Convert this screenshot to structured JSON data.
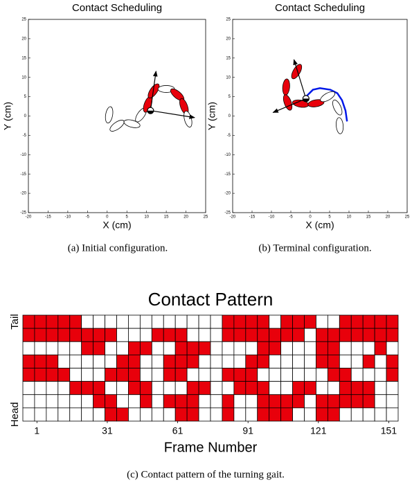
{
  "chart_data": [
    {
      "type": "snake",
      "title": "Contact Scheduling",
      "xlabel": "X (cm)",
      "ylabel": "Y (cm)",
      "caption": "(a) Initial configuration.",
      "xlim": [
        -20,
        25
      ],
      "ylim": [
        -25,
        25
      ],
      "xticks": [
        -20,
        -15,
        -10,
        -5,
        0,
        5,
        10,
        15,
        20,
        25
      ],
      "yticks": [
        -25,
        -20,
        -15,
        -10,
        -5,
        0,
        5,
        10,
        15,
        20,
        25
      ],
      "contact_color": "#e8000b",
      "links": {
        "x": [
          0.5,
          2.5,
          6.3,
          8.6,
          10.3,
          11.8,
          15,
          17.8,
          19.5,
          20.5
        ],
        "y": [
          0.3,
          -2.5,
          -2.0,
          0.3,
          3.0,
          6.5,
          7,
          5.5,
          2.5,
          -0.8
        ],
        "angle": [
          80,
          35,
          -15,
          55,
          70,
          55,
          0,
          -40,
          -70,
          -75
        ],
        "contact": [
          0,
          0,
          0,
          0,
          1,
          1,
          0,
          1,
          1,
          0
        ]
      },
      "center": [
        11,
        1.4
      ],
      "arrows": {
        "x0": [
          11,
          11
        ],
        "y0": [
          1.4,
          1.4
        ],
        "x1": [
          12.4,
          22.2
        ],
        "y1": [
          11.6,
          -0.4
        ]
      }
    },
    {
      "type": "snake",
      "title": "Contact Scheduling",
      "xlabel": "X (cm)",
      "ylabel": "Y (cm)",
      "caption": "(b) Terminal configuration.",
      "xlim": [
        -20,
        25
      ],
      "ylim": [
        -25,
        25
      ],
      "xticks": [
        -20,
        -15,
        -10,
        -5,
        0,
        5,
        10,
        15,
        20,
        25
      ],
      "yticks": [
        -25,
        -20,
        -15,
        -10,
        -5,
        0,
        5,
        10,
        15,
        20,
        25
      ],
      "contact_color": "#e8000b",
      "links": {
        "x": [
          -3.5,
          -6.2,
          -5.8,
          -2.5,
          1.5,
          4.5,
          7.0,
          7.6
        ],
        "y": [
          11.5,
          7.5,
          3.5,
          3.2,
          3.3,
          5.0,
          2.2,
          -2.5
        ],
        "angle": [
          60,
          85,
          110,
          -10,
          10,
          30,
          -65,
          -85
        ],
        "contact": [
          1,
          1,
          1,
          1,
          1,
          0,
          0,
          0
        ]
      },
      "center": [
        -1.1,
        4.5
      ],
      "arrows": {
        "x0": [
          -1.1,
          -1.1
        ],
        "y0": [
          4.5,
          4.5
        ],
        "x1": [
          -4.2,
          -9.6
        ],
        "y1": [
          14.6,
          0.9
        ]
      },
      "trajectory": {
        "color": "#0018e8",
        "x": [
          -1.1,
          0.7,
          2.5,
          5.2,
          7.0,
          8.2,
          9.1,
          9.5
        ],
        "y": [
          5.0,
          6.8,
          7.2,
          6.8,
          5.9,
          4.1,
          1.4,
          -1.4
        ]
      }
    },
    {
      "type": "pattern",
      "title": "Contact Pattern",
      "xlabel": "Frame Number",
      "caption": "(c) Contact pattern of the turning gait.",
      "xlim": [
        -5,
        155
      ],
      "xticks": [
        1,
        31,
        61,
        91,
        121,
        151
      ],
      "rows": [
        "Tail",
        null,
        null,
        null,
        null,
        null,
        null,
        "Head"
      ],
      "color": "#e8000b",
      "cells": [
        [
          1,
          1,
          1,
          1,
          1,
          0,
          0,
          0,
          0,
          0,
          0,
          0,
          0,
          0,
          0,
          0,
          0,
          1,
          1,
          1,
          1,
          0,
          1,
          1,
          1,
          0,
          0,
          1,
          1,
          1,
          1,
          1
        ],
        [
          1,
          1,
          1,
          1,
          1,
          1,
          1,
          1,
          0,
          0,
          0,
          1,
          1,
          1,
          0,
          0,
          0,
          1,
          1,
          1,
          1,
          1,
          1,
          1,
          0,
          1,
          1,
          1,
          1,
          1,
          1,
          1
        ],
        [
          0,
          0,
          0,
          0,
          0,
          1,
          1,
          0,
          0,
          1,
          1,
          0,
          0,
          1,
          1,
          1,
          0,
          0,
          0,
          0,
          1,
          1,
          0,
          0,
          0,
          1,
          1,
          0,
          0,
          0,
          1,
          0
        ],
        [
          1,
          1,
          1,
          0,
          0,
          0,
          0,
          0,
          1,
          1,
          0,
          0,
          1,
          1,
          1,
          0,
          0,
          0,
          0,
          1,
          1,
          0,
          0,
          0,
          0,
          1,
          1,
          0,
          0,
          1,
          0,
          1
        ],
        [
          1,
          1,
          1,
          1,
          0,
          0,
          0,
          1,
          1,
          1,
          0,
          0,
          1,
          1,
          0,
          0,
          0,
          1,
          1,
          1,
          0,
          0,
          0,
          0,
          0,
          0,
          1,
          1,
          0,
          0,
          0,
          1
        ],
        [
          0,
          0,
          0,
          0,
          1,
          1,
          1,
          0,
          0,
          1,
          1,
          0,
          0,
          0,
          1,
          1,
          0,
          0,
          1,
          1,
          1,
          0,
          0,
          1,
          1,
          0,
          0,
          1,
          1,
          1,
          0,
          0
        ],
        [
          0,
          0,
          0,
          0,
          0,
          0,
          1,
          1,
          0,
          0,
          1,
          0,
          1,
          1,
          1,
          0,
          0,
          1,
          0,
          0,
          1,
          1,
          1,
          1,
          0,
          1,
          1,
          1,
          1,
          1,
          0,
          0
        ],
        [
          0,
          0,
          0,
          0,
          0,
          0,
          0,
          1,
          1,
          0,
          0,
          0,
          0,
          1,
          1,
          0,
          0,
          1,
          0,
          0,
          1,
          1,
          1,
          0,
          0,
          1,
          1,
          0,
          0,
          0,
          0,
          0
        ]
      ]
    }
  ]
}
